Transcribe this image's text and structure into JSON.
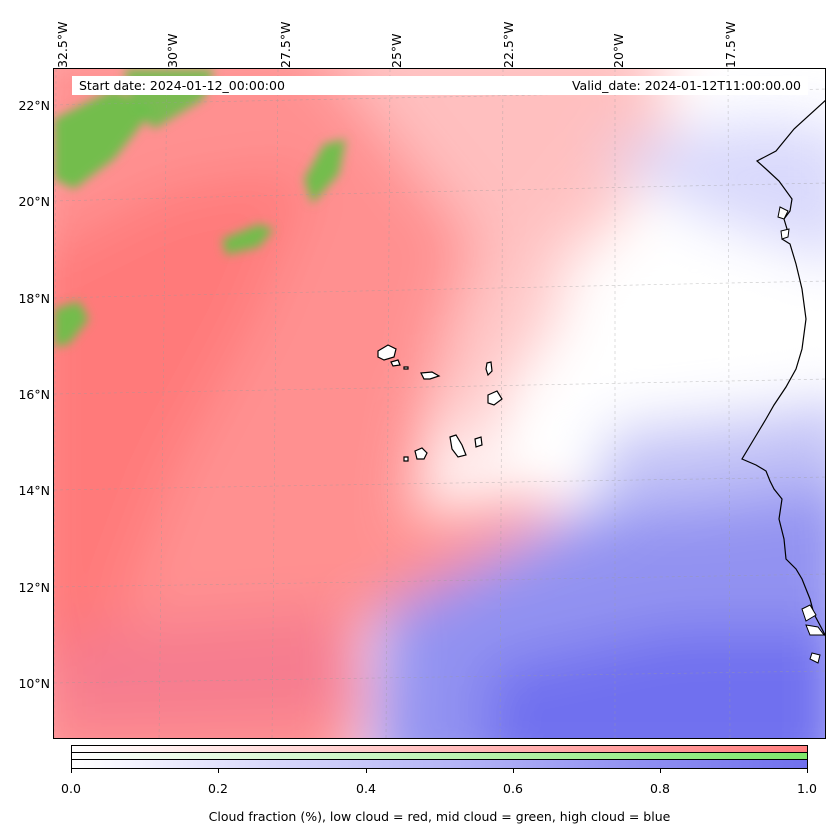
{
  "map": {
    "lon_labels": [
      "32.5°W",
      "30°W",
      "27.5°W",
      "25°W",
      "22.5°W",
      "20°W",
      "17.5°W"
    ],
    "lat_labels": [
      "22°N",
      "20°N",
      "18°N",
      "16°N",
      "14°N",
      "12°N",
      "10°N"
    ],
    "start_date": "Start date: 2024-01-12_00:00:00",
    "valid_date": "Valid_date: 2024-01-12T11:00:00.00",
    "colors": {
      "low_cloud": "#ff8080",
      "mid_cloud": "#7fcc55",
      "high_cloud": "#7070ee",
      "clear": "#ffffff",
      "coastline": "#000000",
      "gridline": "#bbbbbb"
    }
  },
  "colorbar": {
    "ticks": [
      "0.0",
      "0.2",
      "0.4",
      "0.6",
      "0.8",
      "1.0"
    ],
    "label": "Cloud fraction (%), low cloud = red, mid cloud = green, high cloud = blue"
  }
}
